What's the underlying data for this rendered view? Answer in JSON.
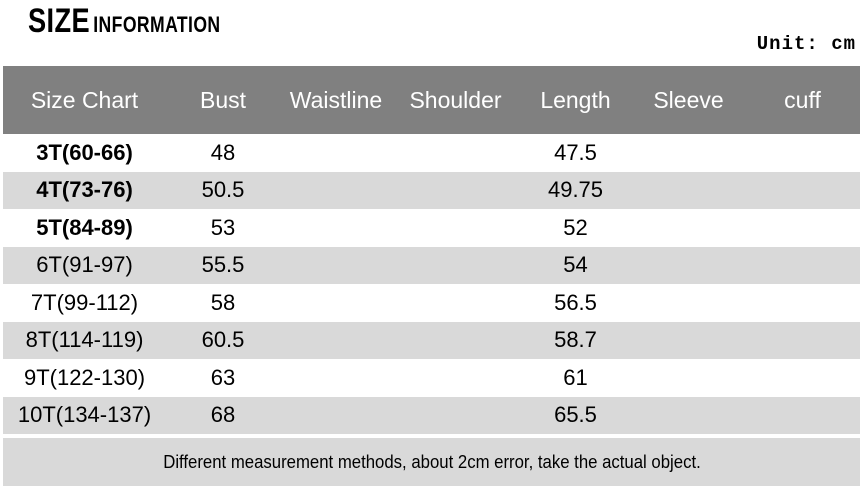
{
  "title": {
    "main": "SIZE",
    "sub": "INFORMATION"
  },
  "unit_label": "Unit: cm",
  "colors": {
    "header_bg": "#808080",
    "header_text": "#ffffff",
    "alt_row_bg": "#d9d9d9",
    "footer_bg": "#d9d9d9",
    "text": "#000000",
    "page_bg": "#ffffff"
  },
  "table": {
    "headers": [
      "Size Chart",
      "Bust",
      "Waistline",
      "Shoulder",
      "Length",
      "Sleeve",
      "cuff"
    ],
    "rows": [
      {
        "cells": [
          "3T(60-66)",
          "48",
          "",
          "",
          "47.5",
          "",
          ""
        ],
        "bold_label": true
      },
      {
        "cells": [
          "4T(73-76)",
          "50.5",
          "",
          "",
          "49.75",
          "",
          ""
        ],
        "bold_label": true
      },
      {
        "cells": [
          "5T(84-89)",
          "53",
          "",
          "",
          "52",
          "",
          ""
        ],
        "bold_label": true
      },
      {
        "cells": [
          "6T(91-97)",
          "55.5",
          "",
          "",
          "54",
          "",
          ""
        ],
        "bold_label": false
      },
      {
        "cells": [
          "7T(99-112)",
          "58",
          "",
          "",
          "56.5",
          "",
          ""
        ],
        "bold_label": false
      },
      {
        "cells": [
          "8T(114-119)",
          "60.5",
          "",
          "",
          "58.7",
          "",
          ""
        ],
        "bold_label": false
      },
      {
        "cells": [
          "9T(122-130)",
          "63",
          "",
          "",
          "61",
          "",
          ""
        ],
        "bold_label": false
      },
      {
        "cells": [
          "10T(134-137)",
          "68",
          "",
          "",
          "65.5",
          "",
          ""
        ],
        "bold_label": false
      }
    ],
    "footer_note": "Different measurement methods, about 2cm error, take the actual object."
  },
  "chart_data": {
    "type": "table",
    "title": "SIZE INFORMATION",
    "unit": "cm",
    "columns": [
      "Size Chart",
      "Bust",
      "Waistline",
      "Shoulder",
      "Length",
      "Sleeve",
      "cuff"
    ],
    "rows": [
      [
        "3T(60-66)",
        48,
        null,
        null,
        47.5,
        null,
        null
      ],
      [
        "4T(73-76)",
        50.5,
        null,
        null,
        49.75,
        null,
        null
      ],
      [
        "5T(84-89)",
        53,
        null,
        null,
        52,
        null,
        null
      ],
      [
        "6T(91-97)",
        55.5,
        null,
        null,
        54,
        null,
        null
      ],
      [
        "7T(99-112)",
        58,
        null,
        null,
        56.5,
        null,
        null
      ],
      [
        "8T(114-119)",
        60.5,
        null,
        null,
        58.7,
        null,
        null
      ],
      [
        "9T(122-130)",
        63,
        null,
        null,
        61,
        null,
        null
      ],
      [
        "10T(134-137)",
        68,
        null,
        null,
        65.5,
        null,
        null
      ]
    ],
    "note": "Different measurement methods, about 2cm error, take the actual object."
  }
}
